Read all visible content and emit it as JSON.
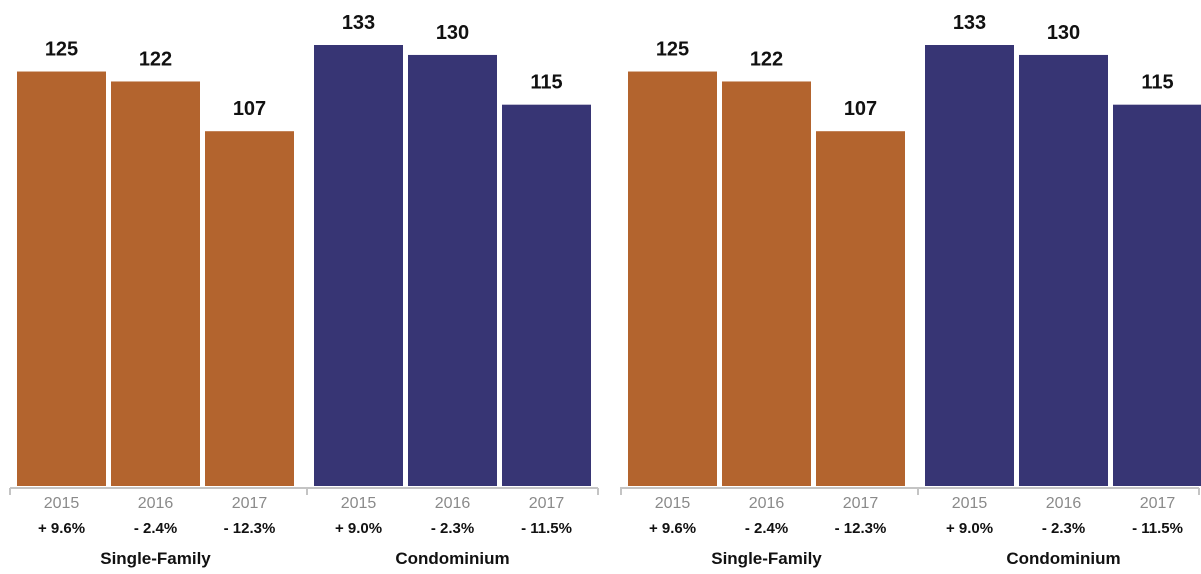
{
  "chart_data": [
    {
      "type": "bar",
      "ylim": [
        0,
        140
      ],
      "grid": false,
      "groups": [
        {
          "name": "Single-Family",
          "color": "#b3642e",
          "categories": [
            "2015",
            "2016",
            "2017"
          ],
          "values": [
            125,
            122,
            107
          ],
          "changes": [
            "+ 9.6%",
            "- 2.4%",
            "- 12.3%"
          ]
        },
        {
          "name": "Condominium",
          "color": "#373574",
          "categories": [
            "2015",
            "2016",
            "2017"
          ],
          "values": [
            133,
            130,
            115
          ],
          "changes": [
            "+ 9.0%",
            "- 2.3%",
            "- 11.5%"
          ]
        }
      ]
    },
    {
      "type": "bar",
      "ylim": [
        0,
        140
      ],
      "grid": false,
      "groups": [
        {
          "name": "Single-Family",
          "color": "#b3642e",
          "categories": [
            "2015",
            "2016",
            "2017"
          ],
          "values": [
            125,
            122,
            107
          ],
          "changes": [
            "+ 9.6%",
            "- 2.4%",
            "- 12.3%"
          ]
        },
        {
          "name": "Condominium",
          "color": "#373574",
          "categories": [
            "2015",
            "2016",
            "2017"
          ],
          "values": [
            133,
            130,
            115
          ],
          "changes": [
            "+ 9.0%",
            "- 2.3%",
            "- 11.5%"
          ]
        }
      ]
    }
  ]
}
